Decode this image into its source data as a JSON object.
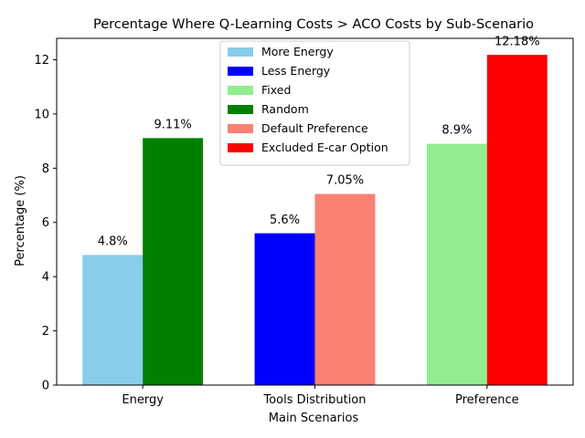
{
  "chart_data": {
    "type": "bar",
    "title": "Percentage Where Q-Learning Costs > ACO Costs by Sub-Scenario",
    "xlabel": "Main Scenarios",
    "ylabel": "Percentage (%)",
    "ylim": [
      0,
      12.79
    ],
    "yticks": [
      0,
      2,
      4,
      6,
      8,
      10,
      12
    ],
    "categories": [
      "Energy",
      "Tools Distribution",
      "Preference"
    ],
    "legend_position": "top-center",
    "grid": false,
    "groups": [
      {
        "category": "Energy",
        "bars": [
          {
            "name": "More Energy",
            "value": 4.8,
            "label": "4.8%",
            "color": "#87ceeb"
          },
          {
            "name": "Random",
            "value": 9.11,
            "label": "9.11%",
            "color": "#008000"
          }
        ]
      },
      {
        "category": "Tools Distribution",
        "bars": [
          {
            "name": "Less Energy",
            "value": 5.6,
            "label": "5.6%",
            "color": "#0000ff"
          },
          {
            "name": "Default Preference",
            "value": 7.05,
            "label": "7.05%",
            "color": "#fa8072"
          }
        ]
      },
      {
        "category": "Preference",
        "bars": [
          {
            "name": "Fixed",
            "value": 8.9,
            "label": "8.9%",
            "color": "#90ee90"
          },
          {
            "name": "Excluded E-car Option",
            "value": 12.18,
            "label": "12.18%",
            "color": "#ff0000"
          }
        ]
      }
    ],
    "legend": [
      {
        "name": "More Energy",
        "color": "#87ceeb"
      },
      {
        "name": "Less Energy",
        "color": "#0000ff"
      },
      {
        "name": "Fixed",
        "color": "#90ee90"
      },
      {
        "name": "Random",
        "color": "#008000"
      },
      {
        "name": "Default Preference",
        "color": "#fa8072"
      },
      {
        "name": "Excluded E-car Option",
        "color": "#ff0000"
      }
    ]
  }
}
